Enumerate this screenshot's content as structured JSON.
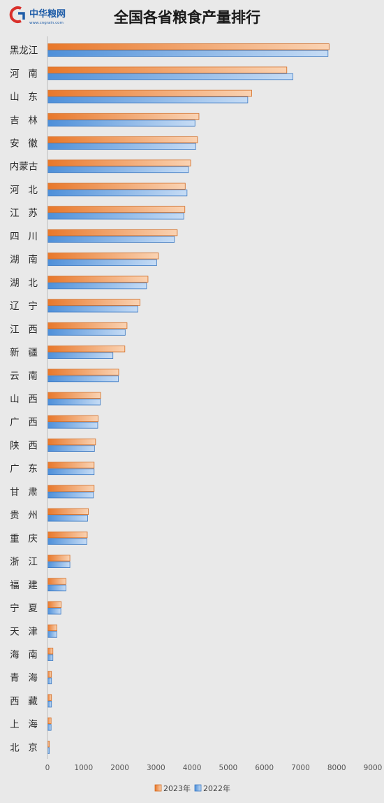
{
  "logo": {
    "name": "中华粮网",
    "url_text": "www.cngrain.com",
    "mark": "C",
    "colors": {
      "mark_red": "#d9302b",
      "mark_blue": "#1f5da8",
      "text": "#1f5da8"
    }
  },
  "chart_data": {
    "type": "bar",
    "orientation": "horizontal",
    "title": "全国各省粮食产量排行",
    "xlabel": "",
    "ylabel": "",
    "xlim": [
      0,
      9000
    ],
    "x_ticks": [
      0,
      1000,
      2000,
      3000,
      4000,
      5000,
      6000,
      7000,
      8000,
      9000
    ],
    "grid": false,
    "legend_position": "bottom-center",
    "categories": [
      "黑龙江",
      "河 南",
      "山 东",
      "吉 林",
      "安 徽",
      "内蒙古",
      "河 北",
      "江 苏",
      "四 川",
      "湖 南",
      "湖 北",
      "辽 宁",
      "江 西",
      "新 疆",
      "云 南",
      "山 西",
      "广 西",
      "陕 西",
      "广 东",
      "甘 肃",
      "贵 州",
      "重 庆",
      "浙 江",
      "福 建",
      "宁 夏",
      "天 津",
      "海 南",
      "青 海",
      "西 藏",
      "上 海",
      "北 京"
    ],
    "series": [
      {
        "name": "2023年",
        "color": "#f0883f",
        "values": [
          7790,
          6620,
          5650,
          4190,
          4150,
          3960,
          3810,
          3800,
          3590,
          3070,
          2780,
          2560,
          2200,
          2140,
          1970,
          1470,
          1400,
          1330,
          1290,
          1290,
          1130,
          1100,
          620,
          510,
          380,
          260,
          150,
          110,
          110,
          100,
          50
        ]
      },
      {
        "name": "2022年",
        "color": "#5b9be0",
        "values": [
          7760,
          6790,
          5540,
          4080,
          4100,
          3900,
          3860,
          3770,
          3510,
          3020,
          2740,
          2500,
          2150,
          1810,
          1960,
          1460,
          1390,
          1300,
          1290,
          1270,
          1110,
          1090,
          620,
          510,
          370,
          260,
          150,
          110,
          110,
          100,
          50
        ]
      }
    ]
  }
}
